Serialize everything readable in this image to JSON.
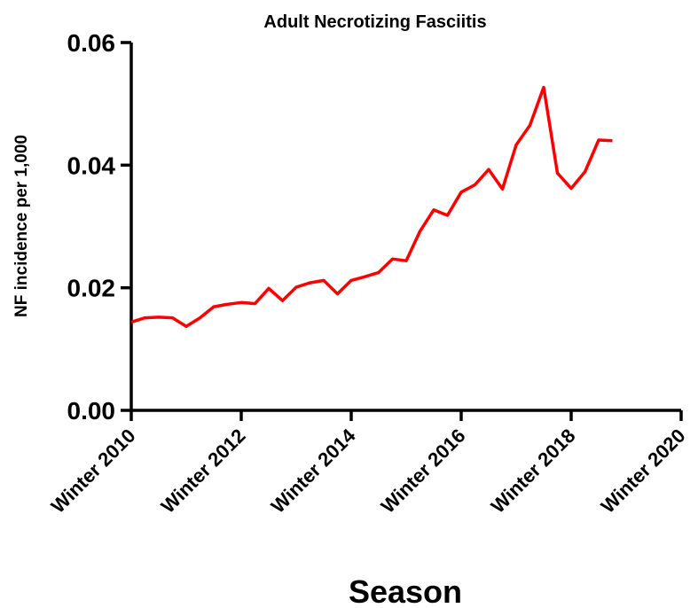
{
  "chart_data": {
    "type": "line",
    "title": "Adult Necrotizing Fasciitis",
    "xlabel": "Season",
    "ylabel": "NF incidence per 1,000",
    "ylim": [
      0,
      0.06
    ],
    "yticks": [
      "0.00",
      "0.02",
      "0.04",
      "0.06"
    ],
    "xlim": [
      2010,
      2020
    ],
    "xticks": [
      "Winter 2010",
      "Winter 2012",
      "Winter 2014",
      "Winter 2016",
      "Winter 2018",
      "Winter 2020"
    ],
    "grid": false,
    "legend": "none",
    "series": [
      {
        "color": "#ff0000",
        "x": [
          2010.0,
          2010.25,
          2010.5,
          2010.75,
          2011.0,
          2011.25,
          2011.5,
          2011.75,
          2012.0,
          2012.25,
          2012.5,
          2012.75,
          2013.0,
          2013.25,
          2013.5,
          2013.75,
          2014.0,
          2014.25,
          2014.5,
          2014.75,
          2015.0,
          2015.25,
          2015.5,
          2015.75,
          2016.0,
          2016.25,
          2016.5,
          2016.75,
          2017.0,
          2017.25,
          2017.5,
          2017.75,
          2018.0,
          2018.25,
          2018.5,
          2018.75
        ],
        "values": [
          0.0144,
          0.0151,
          0.0152,
          0.0151,
          0.0137,
          0.0151,
          0.0169,
          0.0173,
          0.0176,
          0.0174,
          0.0199,
          0.0179,
          0.0201,
          0.0208,
          0.0212,
          0.019,
          0.0212,
          0.0218,
          0.0225,
          0.0247,
          0.0244,
          0.0292,
          0.0327,
          0.0318,
          0.0356,
          0.0368,
          0.0393,
          0.0361,
          0.0433,
          0.0465,
          0.0527,
          0.0387,
          0.0362,
          0.0389,
          0.0441,
          0.044
        ]
      }
    ]
  }
}
